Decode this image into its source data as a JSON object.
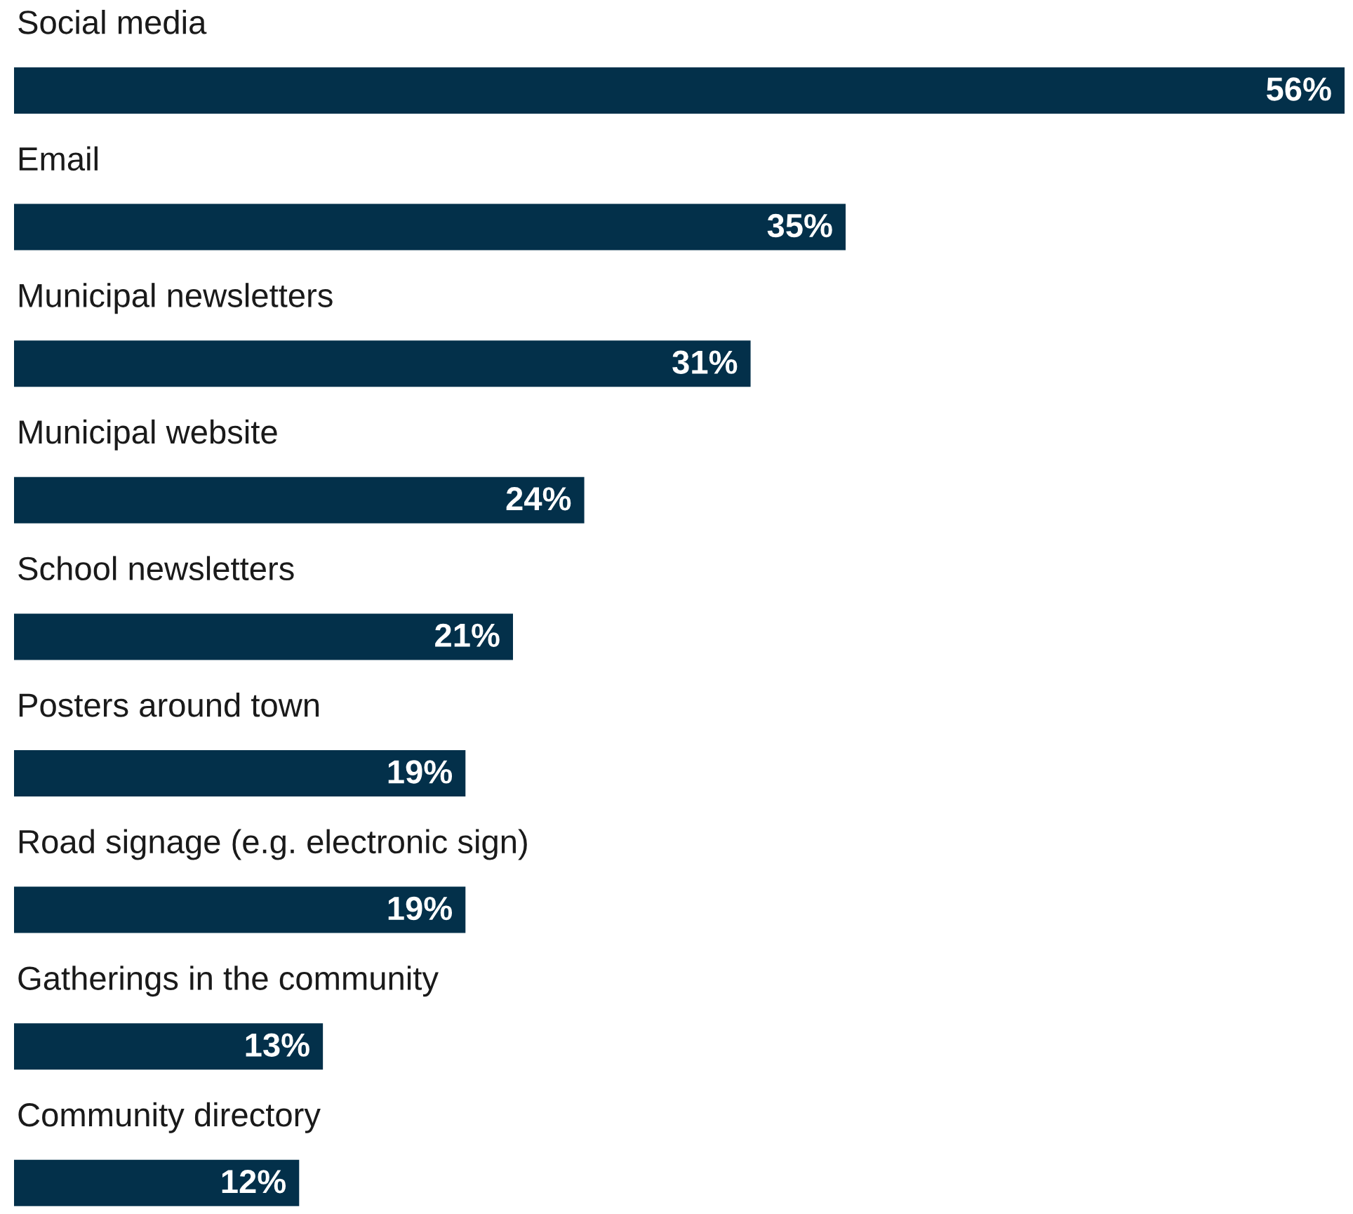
{
  "chart_data": {
    "type": "bar",
    "orientation": "horizontal",
    "categories": [
      "Social media",
      "Email",
      "Municipal newsletters",
      "Municipal website",
      "School newsletters",
      "Posters around town",
      "Road signage (e.g. electronic sign)",
      "Gatherings in the community",
      "Community directory"
    ],
    "values": [
      56,
      35,
      31,
      24,
      21,
      19,
      19,
      13,
      12
    ],
    "value_labels": [
      "56%",
      "35%",
      "31%",
      "24%",
      "21%",
      "19%",
      "19%",
      "13%",
      "12%"
    ],
    "color": "#03304a"
  }
}
